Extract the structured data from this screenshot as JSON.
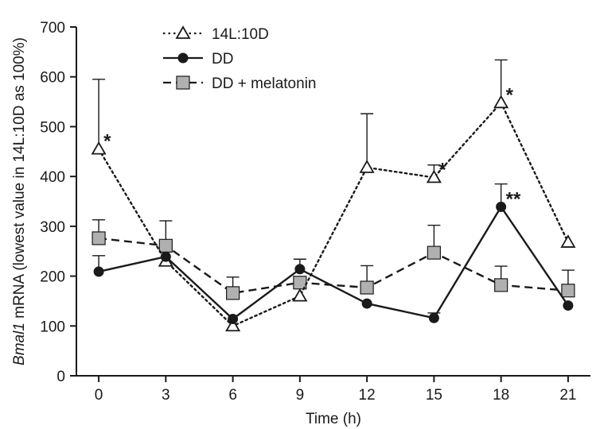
{
  "chart_data": {
    "type": "line",
    "xlabel": "Time (h)",
    "ylabel_gene": "Bmal1",
    "ylabel_rest": " mRNA (lowest value in 14L:10D as 100%)",
    "xlim": [
      -1,
      22
    ],
    "ylim": [
      0,
      700
    ],
    "x_ticks": [
      0,
      3,
      6,
      9,
      12,
      15,
      18,
      21
    ],
    "y_ticks": [
      0,
      100,
      200,
      300,
      400,
      500,
      600,
      700
    ],
    "x": [
      0,
      3,
      6,
      9,
      12,
      15,
      18,
      21
    ],
    "legend_position": "top-left",
    "series": [
      {
        "name": "14L:10D",
        "values": [
          455,
          230,
          100,
          160,
          418,
          398,
          548,
          268
        ],
        "errors": [
          140,
          0,
          0,
          0,
          108,
          25,
          86,
          0
        ],
        "marker": "triangle-open",
        "line_style": "dotted",
        "annotations": [
          "*",
          "",
          "",
          "",
          "",
          "*",
          "*",
          ""
        ]
      },
      {
        "name": "DD",
        "values": [
          209,
          239,
          114,
          214,
          145,
          116,
          339,
          141
        ],
        "errors": [
          32,
          0,
          0,
          20,
          0,
          10,
          46,
          0
        ],
        "marker": "circle-filled",
        "line_style": "solid",
        "annotations": [
          "",
          "",
          "",
          "",
          "",
          "",
          "**",
          ""
        ]
      },
      {
        "name": "DD + melatonin",
        "values": [
          276,
          261,
          166,
          187,
          177,
          247,
          182,
          171
        ],
        "errors": [
          37,
          50,
          32,
          0,
          44,
          55,
          38,
          41
        ],
        "marker": "square-filled",
        "line_style": "dashed",
        "annotations": [
          "",
          "",
          "",
          "",
          "",
          "",
          "",
          ""
        ]
      }
    ]
  },
  "colors": {
    "axis": "#1a1a1a",
    "line": "#1a1a1a",
    "square_fill": "#b0b0b0",
    "open_fill": "#ffffff"
  }
}
